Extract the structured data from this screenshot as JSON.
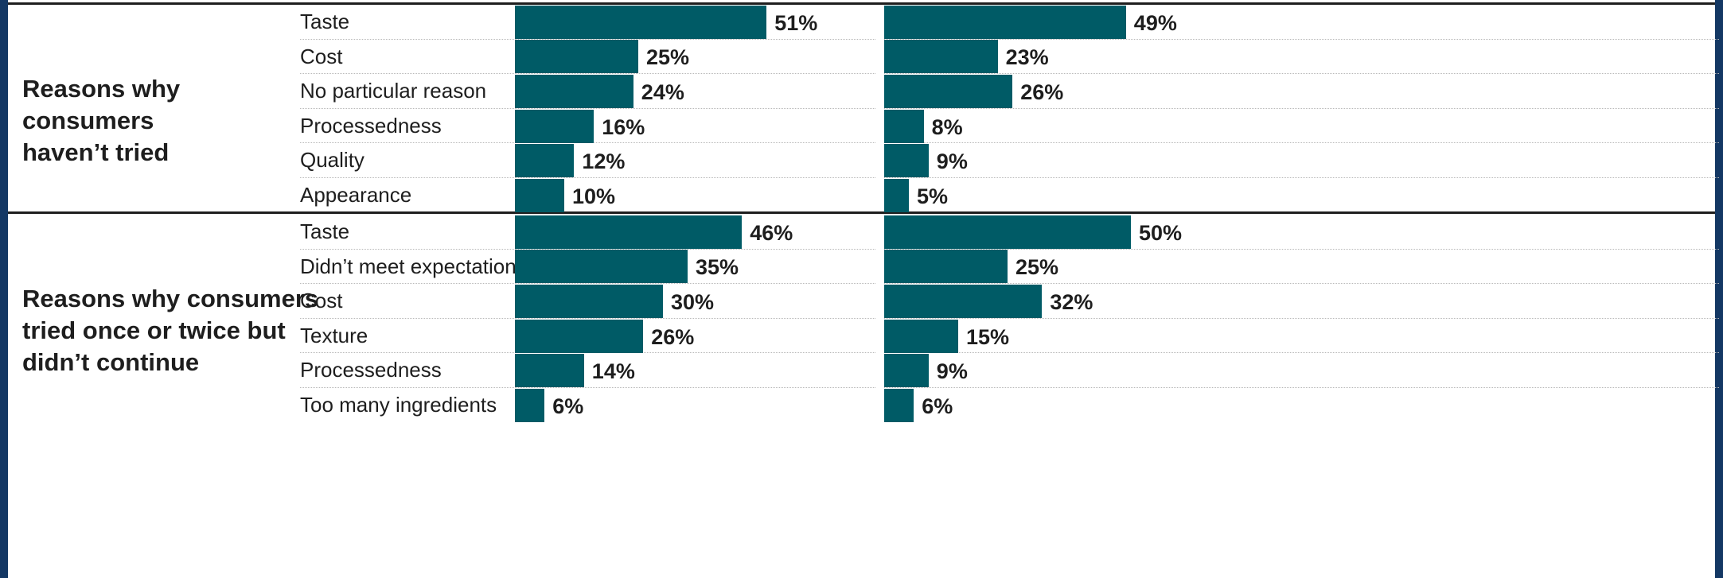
{
  "colors": {
    "bar": "#005b66",
    "frame": "#143864",
    "text": "#1e1e1e"
  },
  "chart_data": {
    "type": "bar",
    "orientation": "horizontal",
    "xlim": [
      0,
      100
    ],
    "grid": false,
    "legend": "none",
    "groups": [
      {
        "label": "Reasons why consumers haven’t tried",
        "label_lines": [
          "Reasons why",
          "consumers",
          "haven’t tried"
        ],
        "categories": [
          "Taste",
          "Cost",
          "No particular reason",
          "Processedness",
          "Quality",
          "Appearance"
        ],
        "series": [
          {
            "values": [
              51,
              25,
              24,
              16,
              12,
              10
            ],
            "labels": [
              "51%",
              "25%",
              "24%",
              "16%",
              "12%",
              "10%"
            ]
          },
          {
            "values": [
              49,
              23,
              26,
              8,
              9,
              5
            ],
            "labels": [
              "49%",
              "23%",
              "26%",
              "8%",
              "9%",
              "5%"
            ]
          }
        ]
      },
      {
        "label": "Reasons why consumers tried once or twice but didn’t continue",
        "label_lines": [
          "Reasons why consumers",
          "tried once or twice but",
          "didn’t continue"
        ],
        "categories": [
          "Taste",
          "Didn’t meet expectations",
          "Cost",
          "Texture",
          "Processedness",
          "Too many ingredients"
        ],
        "series": [
          {
            "values": [
              46,
              35,
              30,
              26,
              14,
              6
            ],
            "labels": [
              "46%",
              "35%",
              "30%",
              "26%",
              "14%",
              "6%"
            ]
          },
          {
            "values": [
              50,
              25,
              32,
              15,
              9,
              6
            ],
            "labels": [
              "50%",
              "25%",
              "32%",
              "15%",
              "9%",
              "6%"
            ]
          }
        ]
      }
    ]
  }
}
